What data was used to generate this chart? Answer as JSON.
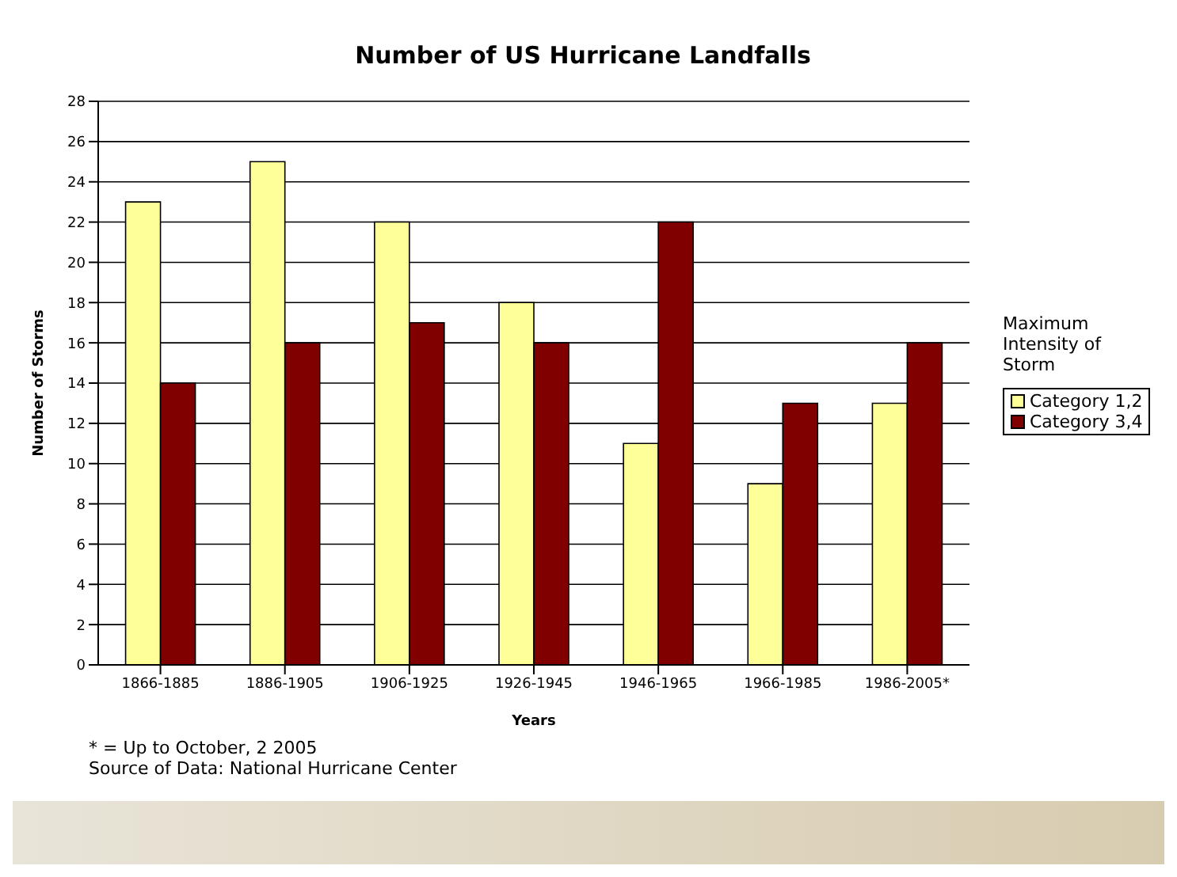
{
  "chart_data": {
    "type": "bar",
    "title": "Number of US Hurricane Landfalls",
    "xlabel": "Years",
    "ylabel": "Number of Storms",
    "legend_title": "Maximum Intensity of Storm",
    "categories": [
      "1866-1885",
      "1886-1905",
      "1906-1925",
      "1926-1945",
      "1946-1965",
      "1966-1985",
      "1986-2005*"
    ],
    "series": [
      {
        "name": "Category 1,2",
        "color": "#ffff99",
        "values": [
          23,
          25,
          22,
          18,
          11,
          9,
          13
        ]
      },
      {
        "name": "Category 3,4",
        "color": "#800000",
        "values": [
          14,
          16,
          17,
          16,
          22,
          13,
          16
        ]
      }
    ],
    "ylim": [
      0,
      28
    ],
    "yticks": [
      0,
      2,
      4,
      6,
      8,
      10,
      12,
      14,
      16,
      18,
      20,
      22,
      24,
      26,
      28
    ],
    "grid": "y",
    "legend": "right",
    "annotations": [
      "* = Up to October, 2 2005",
      "Source of Data:  National Hurricane Center"
    ]
  }
}
